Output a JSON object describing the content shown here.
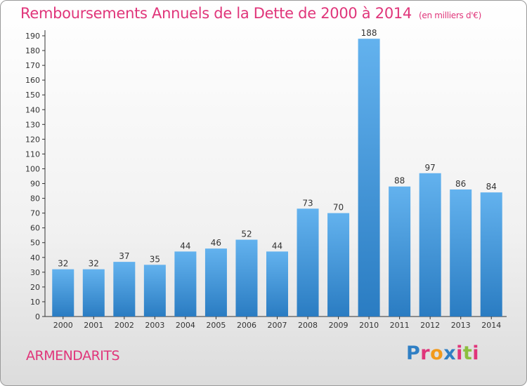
{
  "chart_data": {
    "type": "bar",
    "title": "Remboursements Annuels de la Dette de 2000 à 2014",
    "subtitle": "(en milliers d'€)",
    "categories": [
      "2000",
      "2001",
      "2002",
      "2003",
      "2004",
      "2005",
      "2006",
      "2007",
      "2008",
      "2009",
      "2010",
      "2011",
      "2012",
      "2013",
      "2014"
    ],
    "values": [
      32,
      32,
      37,
      35,
      44,
      46,
      52,
      44,
      73,
      70,
      188,
      88,
      97,
      86,
      84
    ],
    "data_labels": [
      "32",
      "32",
      "37",
      "35",
      "44",
      "46",
      "52",
      "44",
      "73",
      "70",
      "188",
      "88",
      "97",
      "86",
      "84"
    ],
    "yticks": [
      0,
      10,
      20,
      30,
      40,
      50,
      60,
      70,
      80,
      90,
      100,
      110,
      120,
      130,
      140,
      150,
      160,
      170,
      180,
      190
    ],
    "ylim": [
      0,
      190
    ],
    "xlabel": "",
    "ylabel": "",
    "grid": false,
    "bar_color": "#3a93d8"
  },
  "footer": {
    "commune": "ARMENDARITS",
    "logo_letters": [
      "P",
      "r",
      "o",
      "x",
      "i",
      "t",
      "i"
    ],
    "logo_colors": [
      "#2f7fc4",
      "#e0357a",
      "#f29a1c",
      "#2f7fc4",
      "#e0357a",
      "#8cbf3f",
      "#e0357a"
    ]
  }
}
